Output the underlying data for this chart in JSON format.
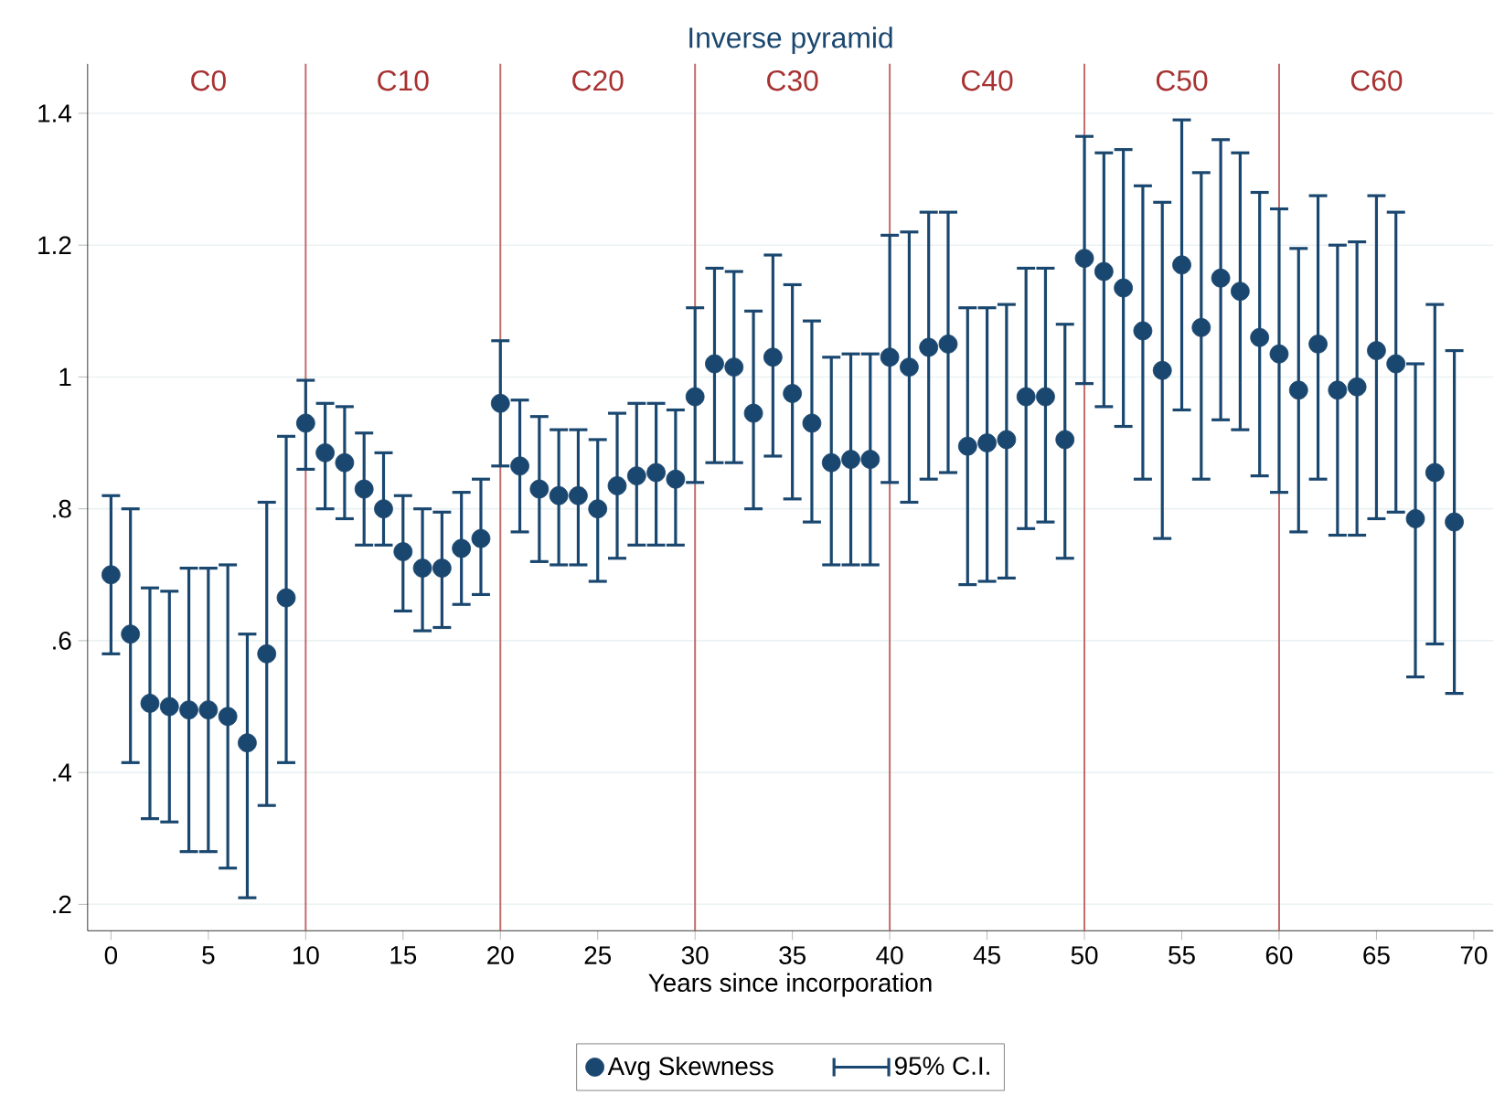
{
  "chart_data": {
    "type": "scatter",
    "title": "Inverse pyramid",
    "xlabel": "Years since incorporation",
    "x": [
      0,
      1,
      2,
      3,
      4,
      5,
      6,
      7,
      8,
      9,
      10,
      11,
      12,
      13,
      14,
      15,
      16,
      17,
      18,
      19,
      20,
      21,
      22,
      23,
      24,
      25,
      26,
      27,
      28,
      29,
      30,
      31,
      32,
      33,
      34,
      35,
      36,
      37,
      38,
      39,
      40,
      41,
      42,
      43,
      44,
      45,
      46,
      47,
      48,
      49,
      50,
      51,
      52,
      53,
      54,
      55,
      56,
      57,
      58,
      59,
      60,
      61,
      62,
      63,
      64,
      65,
      66,
      67,
      68,
      69
    ],
    "series": [
      {
        "name": "Avg Skewness",
        "color": "#1a476f",
        "marker": "circle",
        "values": [
          0.7,
          0.61,
          0.505,
          0.5,
          0.495,
          0.495,
          0.485,
          0.445,
          0.58,
          0.665,
          0.93,
          0.885,
          0.87,
          0.83,
          0.8,
          0.735,
          0.71,
          0.71,
          0.74,
          0.755,
          0.96,
          0.865,
          0.83,
          0.82,
          0.82,
          0.8,
          0.835,
          0.85,
          0.855,
          0.845,
          0.97,
          1.02,
          1.015,
          0.945,
          1.03,
          0.975,
          0.93,
          0.87,
          0.875,
          0.875,
          1.03,
          1.015,
          1.045,
          1.05,
          0.895,
          0.9,
          0.905,
          0.97,
          0.97,
          0.905,
          1.18,
          1.16,
          1.135,
          1.07,
          1.01,
          1.17,
          1.075,
          1.15,
          1.13,
          1.06,
          1.035,
          0.98,
          1.05,
          0.98,
          0.985,
          1.04,
          1.02,
          0.785,
          0.855,
          0.78
        ],
        "errors": [
          [
            0.58,
            0.82
          ],
          [
            0.415,
            0.8
          ],
          [
            0.33,
            0.68
          ],
          [
            0.325,
            0.675
          ],
          [
            0.28,
            0.71
          ],
          [
            0.28,
            0.71
          ],
          [
            0.255,
            0.715
          ],
          [
            0.21,
            0.61
          ],
          [
            0.35,
            0.81
          ],
          [
            0.415,
            0.91
          ],
          [
            0.86,
            0.995
          ],
          [
            0.8,
            0.96
          ],
          [
            0.785,
            0.955
          ],
          [
            0.745,
            0.915
          ],
          [
            0.745,
            0.885
          ],
          [
            0.645,
            0.82
          ],
          [
            0.615,
            0.8
          ],
          [
            0.62,
            0.795
          ],
          [
            0.655,
            0.825
          ],
          [
            0.67,
            0.845
          ],
          [
            0.865,
            1.055
          ],
          [
            0.765,
            0.965
          ],
          [
            0.72,
            0.94
          ],
          [
            0.715,
            0.92
          ],
          [
            0.715,
            0.92
          ],
          [
            0.69,
            0.905
          ],
          [
            0.725,
            0.945
          ],
          [
            0.745,
            0.96
          ],
          [
            0.745,
            0.96
          ],
          [
            0.745,
            0.95
          ],
          [
            0.84,
            1.105
          ],
          [
            0.87,
            1.165
          ],
          [
            0.87,
            1.16
          ],
          [
            0.8,
            1.1
          ],
          [
            0.88,
            1.185
          ],
          [
            0.815,
            1.14
          ],
          [
            0.78,
            1.085
          ],
          [
            0.715,
            1.03
          ],
          [
            0.715,
            1.035
          ],
          [
            0.715,
            1.035
          ],
          [
            0.84,
            1.215
          ],
          [
            0.81,
            1.22
          ],
          [
            0.845,
            1.25
          ],
          [
            0.855,
            1.25
          ],
          [
            0.685,
            1.105
          ],
          [
            0.69,
            1.105
          ],
          [
            0.695,
            1.11
          ],
          [
            0.77,
            1.165
          ],
          [
            0.78,
            1.165
          ],
          [
            0.725,
            1.08
          ],
          [
            0.99,
            1.365
          ],
          [
            0.955,
            1.34
          ],
          [
            0.925,
            1.345
          ],
          [
            0.845,
            1.29
          ],
          [
            0.755,
            1.265
          ],
          [
            0.95,
            1.39
          ],
          [
            0.845,
            1.31
          ],
          [
            0.935,
            1.36
          ],
          [
            0.92,
            1.34
          ],
          [
            0.85,
            1.28
          ],
          [
            0.825,
            1.255
          ],
          [
            0.765,
            1.195
          ],
          [
            0.845,
            1.275
          ],
          [
            0.76,
            1.2
          ],
          [
            0.76,
            1.205
          ],
          [
            0.785,
            1.275
          ],
          [
            0.795,
            1.25
          ],
          [
            0.545,
            1.02
          ],
          [
            0.595,
            1.11
          ],
          [
            0.52,
            1.04
          ]
        ]
      }
    ],
    "xlim": [
      -1.2,
      71
    ],
    "ylim": [
      0.16,
      1.475
    ],
    "xticks": [
      0,
      5,
      10,
      15,
      20,
      25,
      30,
      35,
      40,
      45,
      50,
      55,
      60,
      65,
      70
    ],
    "yticks": [
      {
        "value": 0.2,
        "label": ".2"
      },
      {
        "value": 0.4,
        "label": ".4"
      },
      {
        "value": 0.6,
        "label": ".6"
      },
      {
        "value": 0.8,
        "label": ".8"
      },
      {
        "value": 1,
        "label": "1"
      },
      {
        "value": 1.2,
        "label": "1.2"
      },
      {
        "value": 1.4,
        "label": "1.4"
      }
    ],
    "grid": "y",
    "legend": "bottom",
    "ref_lines": [
      {
        "axis": "x",
        "value": 10,
        "color": "#c46a6a"
      },
      {
        "axis": "x",
        "value": 20,
        "color": "#c46a6a"
      },
      {
        "axis": "x",
        "value": 30,
        "color": "#c46a6a"
      },
      {
        "axis": "x",
        "value": 40,
        "color": "#c46a6a"
      },
      {
        "axis": "x",
        "value": 50,
        "color": "#c46a6a"
      },
      {
        "axis": "x",
        "value": 60,
        "color": "#c46a6a"
      }
    ],
    "annotations": [
      "C0",
      "C10",
      "C20",
      "C30",
      "C40",
      "C50",
      "C60",
      "95% C.I."
    ]
  }
}
